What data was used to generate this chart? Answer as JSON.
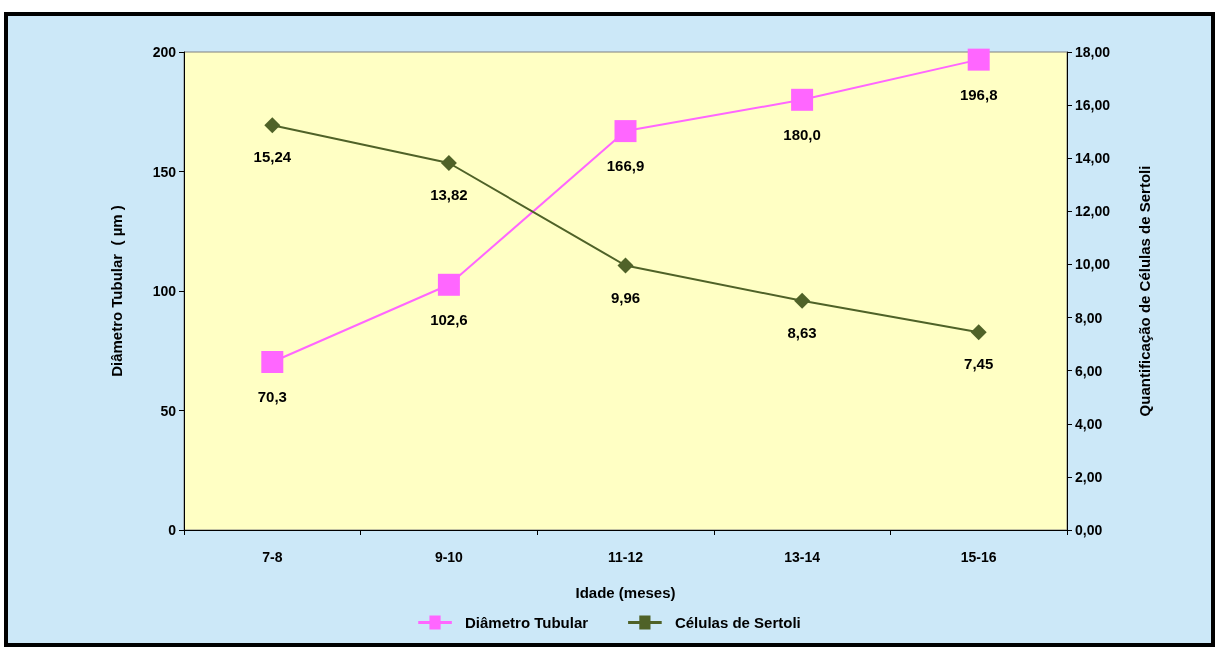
{
  "chart_data": {
    "type": "line",
    "xlabel": "Idade (meses)",
    "ylabel": "Diâmetro Tubular  ( µm )",
    "y2label": "Quantificação de Células de Sertoli",
    "categories": [
      "7-8",
      "9-10",
      "11-12",
      "13-14",
      "15-16"
    ],
    "series": [
      {
        "name": "Diâmetro Tubular",
        "color": "#ff66ff",
        "marker": "square",
        "values": [
          70.3,
          102.6,
          166.9,
          180.0,
          196.8
        ],
        "value_labels": [
          "70,3",
          "102,6",
          "166,9",
          "180,0",
          "196,8"
        ]
      },
      {
        "name": "Células de Sertoli",
        "color": "#4f6228",
        "marker": "diamond",
        "axis": "y2",
        "values": [
          15.24,
          13.82,
          9.96,
          8.63,
          7.45
        ],
        "value_labels": [
          "15,24",
          "13,82",
          "9,96",
          "8,63",
          "7,45"
        ]
      }
    ],
    "ylim": [
      0,
      200
    ],
    "yticks": [
      0,
      50,
      100,
      150,
      200
    ],
    "y2lim": [
      0,
      18
    ],
    "y2ticks": [
      {
        "value": 0,
        "label": "0,00"
      },
      {
        "value": 2,
        "label": "2,00"
      },
      {
        "value": 4,
        "label": "4,00"
      },
      {
        "value": 6,
        "label": "6,00"
      },
      {
        "value": 8,
        "label": "8,00"
      },
      {
        "value": 10,
        "label": "10,00"
      },
      {
        "value": 12,
        "label": "12,00"
      },
      {
        "value": 14,
        "label": "14,00"
      },
      {
        "value": 16,
        "label": "16,00"
      },
      {
        "value": 18,
        "label": "18,00"
      }
    ],
    "line_style": "solid",
    "grid": false,
    "legend": "bottom"
  }
}
